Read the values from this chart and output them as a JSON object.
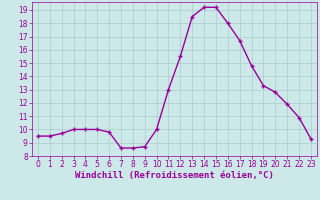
{
  "x": [
    0,
    1,
    2,
    3,
    4,
    5,
    6,
    7,
    8,
    9,
    10,
    11,
    12,
    13,
    14,
    15,
    16,
    17,
    18,
    19,
    20,
    21,
    22,
    23
  ],
  "y": [
    9.5,
    9.5,
    9.7,
    10.0,
    10.0,
    10.0,
    9.8,
    8.6,
    8.6,
    8.7,
    10.0,
    13.0,
    15.5,
    18.5,
    19.2,
    19.2,
    18.0,
    16.7,
    14.8,
    13.3,
    12.8,
    11.9,
    10.9,
    9.3
  ],
  "line_color": "#990099",
  "marker": "+",
  "marker_color": "#990099",
  "bg_color": "#cce8e8",
  "grid_color": "#aacccc",
  "xlabel": "Windchill (Refroidissement éolien,°C)",
  "xlabel_color": "#990099",
  "xlim": [
    -0.5,
    23.5
  ],
  "ylim": [
    8.0,
    19.6
  ],
  "yticks": [
    8,
    9,
    10,
    11,
    12,
    13,
    14,
    15,
    16,
    17,
    18,
    19
  ],
  "xticks": [
    0,
    1,
    2,
    3,
    4,
    5,
    6,
    7,
    8,
    9,
    10,
    11,
    12,
    13,
    14,
    15,
    16,
    17,
    18,
    19,
    20,
    21,
    22,
    23
  ],
  "tick_color": "#990099",
  "tick_label_fontsize": 5.5,
  "xlabel_fontsize": 6.5,
  "line_width": 1.0,
  "marker_size": 3.5
}
